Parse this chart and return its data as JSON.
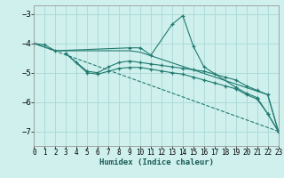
{
  "xlabel": "Humidex (Indice chaleur)",
  "background_color": "#cff0ed",
  "grid_color": "#a8d8d4",
  "line_color": "#217a70",
  "xlim": [
    0,
    23
  ],
  "ylim": [
    -7.5,
    -2.7
  ],
  "yticks": [
    -7,
    -6,
    -5,
    -4,
    -3
  ],
  "xticks": [
    0,
    1,
    2,
    3,
    4,
    5,
    6,
    7,
    8,
    9,
    10,
    11,
    12,
    13,
    14,
    15,
    16,
    17,
    18,
    19,
    20,
    21,
    22,
    23
  ],
  "series": [
    {
      "x": [
        0,
        1,
        2,
        9,
        10,
        11,
        13,
        14,
        15,
        16,
        19,
        20,
        21,
        22,
        23
      ],
      "y": [
        -4.0,
        -4.05,
        -4.25,
        -4.15,
        -4.15,
        -4.4,
        -3.35,
        -3.05,
        -4.1,
        -4.8,
        -5.5,
        -5.7,
        -5.85,
        -6.4,
        -7.0
      ],
      "marker": "+",
      "ls": "-"
    },
    {
      "x": [
        0,
        2,
        9,
        10,
        22,
        23
      ],
      "y": [
        -4.0,
        -4.25,
        -4.25,
        -4.3,
        -5.75,
        -7.0
      ],
      "marker": null,
      "ls": "-"
    },
    {
      "x": [
        3,
        4,
        5,
        6,
        7,
        8,
        9,
        10,
        11,
        12,
        13,
        14,
        15,
        16,
        17,
        18,
        19,
        20,
        21,
        22,
        23
      ],
      "y": [
        -4.35,
        -4.65,
        -4.95,
        -5.0,
        -4.8,
        -4.65,
        -4.6,
        -4.65,
        -4.7,
        -4.75,
        -4.8,
        -4.85,
        -4.9,
        -4.95,
        -5.05,
        -5.15,
        -5.25,
        -5.45,
        -5.6,
        -5.75,
        -7.0
      ],
      "marker": "+",
      "ls": "-"
    },
    {
      "x": [
        3,
        5,
        6,
        7,
        8,
        9,
        10,
        11,
        12,
        13,
        14,
        15,
        16,
        17,
        18,
        19,
        20,
        21,
        22,
        23
      ],
      "y": [
        -4.35,
        -5.0,
        -5.05,
        -4.95,
        -4.85,
        -4.82,
        -4.82,
        -4.88,
        -4.94,
        -5.0,
        -5.05,
        -5.15,
        -5.25,
        -5.35,
        -5.45,
        -5.55,
        -5.75,
        -5.9,
        -6.4,
        -7.0
      ],
      "marker": "+",
      "ls": "-"
    },
    {
      "x": [
        0,
        23
      ],
      "y": [
        -4.0,
        -7.0
      ],
      "marker": null,
      "ls": "--"
    }
  ]
}
